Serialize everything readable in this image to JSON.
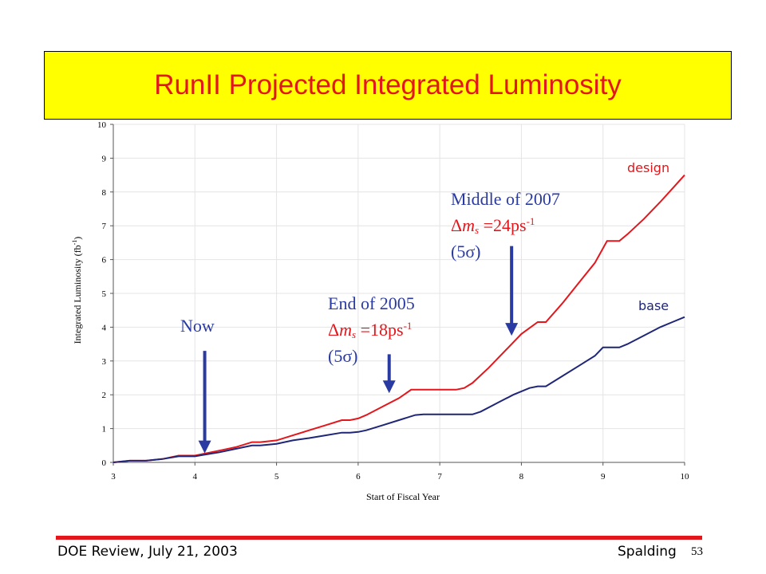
{
  "slide": {
    "title": "RunII Projected Integrated Luminosity",
    "footer_left": "DOE Review, July 21, 2003",
    "footer_right": "Spalding",
    "page_number": "53"
  },
  "annotations": {
    "now": "Now",
    "end2005": {
      "line1": "End of 2005",
      "delta": "Δ",
      "m": "m",
      "sub": "s",
      "value": " =18ps",
      "sup": "-1",
      "sigma": "(5σ)"
    },
    "mid2007": {
      "line1": "Middle of 2007",
      "delta": "Δ",
      "m": "m",
      "sub": "s",
      "value": " =24ps",
      "sup": "-1",
      "sigma": "(5σ)"
    }
  },
  "colors": {
    "design": "#e3161b",
    "base": "#1f2677",
    "arrow": "#2a3aa3",
    "title_bg": "#ffff00"
  },
  "chart_data": {
    "type": "line",
    "xlabel": "Start of Fiscal Year",
    "ylabel": "Integrated Luminosity  (fb",
    "ylabel_sup": "-1",
    "ylabel_close": ")",
    "xlim": [
      3,
      10
    ],
    "ylim": [
      0,
      10
    ],
    "xticks": [
      3,
      4,
      5,
      6,
      7,
      8,
      9,
      10
    ],
    "yticks": [
      0,
      1,
      2,
      3,
      4,
      5,
      6,
      7,
      8,
      9,
      10
    ],
    "grid": true,
    "series": [
      {
        "name": "design",
        "x": [
          3.0,
          3.2,
          3.4,
          3.6,
          3.8,
          4.0,
          4.1,
          4.3,
          4.5,
          4.7,
          4.8,
          5.0,
          5.2,
          5.4,
          5.6,
          5.8,
          5.9,
          6.0,
          6.1,
          6.3,
          6.5,
          6.65,
          6.8,
          7.0,
          7.2,
          7.3,
          7.4,
          7.6,
          7.8,
          8.0,
          8.2,
          8.3,
          8.5,
          8.7,
          8.9,
          9.05,
          9.2,
          9.3,
          9.5,
          9.7,
          9.85,
          10.0
        ],
        "y": [
          0.0,
          0.05,
          0.05,
          0.1,
          0.2,
          0.2,
          0.25,
          0.35,
          0.45,
          0.6,
          0.6,
          0.65,
          0.8,
          0.95,
          1.1,
          1.25,
          1.25,
          1.3,
          1.4,
          1.65,
          1.9,
          2.15,
          2.15,
          2.15,
          2.15,
          2.2,
          2.35,
          2.8,
          3.3,
          3.8,
          4.15,
          4.15,
          4.7,
          5.3,
          5.9,
          6.55,
          6.55,
          6.75,
          7.2,
          7.7,
          8.1,
          8.5
        ]
      },
      {
        "name": "base",
        "x": [
          3.0,
          3.2,
          3.4,
          3.6,
          3.8,
          4.0,
          4.1,
          4.3,
          4.5,
          4.7,
          4.8,
          5.0,
          5.2,
          5.4,
          5.6,
          5.8,
          5.9,
          6.0,
          6.1,
          6.3,
          6.5,
          6.7,
          6.8,
          7.0,
          7.2,
          7.4,
          7.5,
          7.7,
          7.9,
          8.1,
          8.2,
          8.3,
          8.5,
          8.7,
          8.9,
          9.0,
          9.2,
          9.3,
          9.5,
          9.7,
          9.85,
          10.0
        ],
        "y": [
          0.0,
          0.05,
          0.05,
          0.1,
          0.18,
          0.18,
          0.22,
          0.3,
          0.4,
          0.5,
          0.5,
          0.55,
          0.65,
          0.72,
          0.8,
          0.88,
          0.88,
          0.9,
          0.95,
          1.1,
          1.25,
          1.4,
          1.42,
          1.42,
          1.42,
          1.42,
          1.5,
          1.75,
          2.0,
          2.2,
          2.25,
          2.25,
          2.55,
          2.85,
          3.15,
          3.4,
          3.4,
          3.5,
          3.75,
          4.0,
          4.15,
          4.3
        ]
      }
    ],
    "series_labels": {
      "design": "design",
      "base": "base"
    },
    "arrows": [
      {
        "name": "now-arrow",
        "x": 4.12,
        "y_from": 3.3,
        "y_to": 0.22
      },
      {
        "name": "end2005-arrow",
        "x": 6.38,
        "y_from": 3.2,
        "y_to": 2.0
      },
      {
        "name": "mid2007-arrow",
        "x": 7.88,
        "y_from": 6.4,
        "y_to": 3.7
      }
    ]
  }
}
